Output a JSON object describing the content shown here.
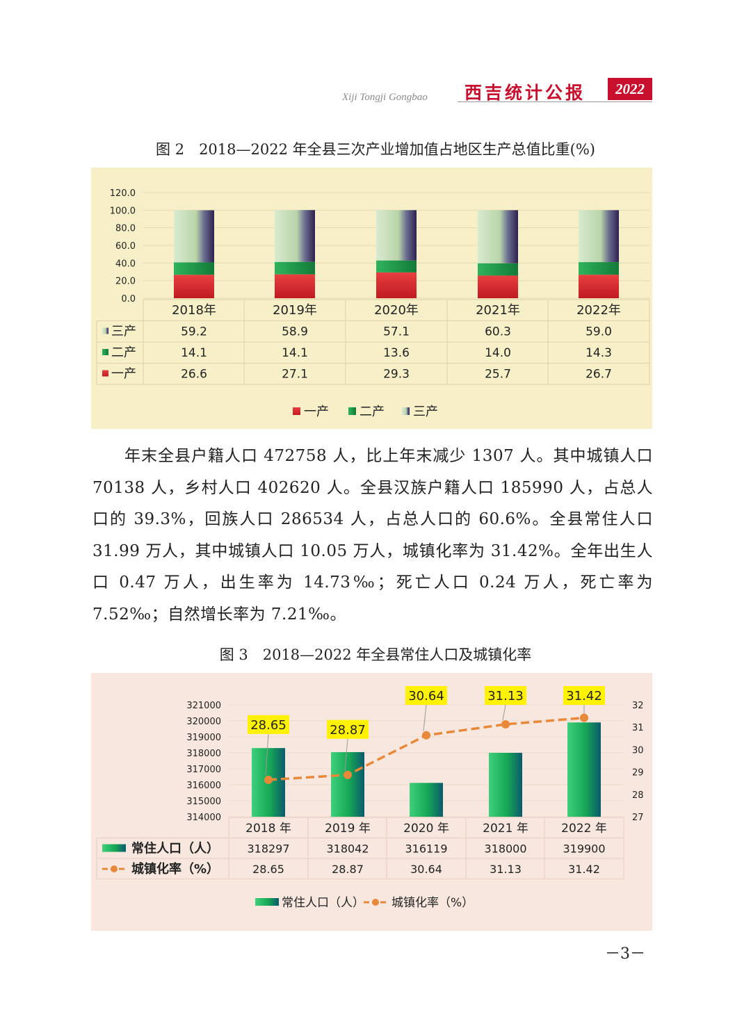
{
  "header": {
    "pinyin": "Xiji Tongji Gongbao",
    "title": "西吉统计公报",
    "year": "2022"
  },
  "figure2": {
    "caption": "图 2　2018—2022 年全县三次产业增加值占地区生产总值比重(%)",
    "chart_data": {
      "type": "bar",
      "stacked": true,
      "categories": [
        "2018年",
        "2019年",
        "2020年",
        "2021年",
        "2022年"
      ],
      "series": [
        {
          "name": "一产",
          "values": [
            26.6,
            27.1,
            29.3,
            25.7,
            26.7
          ],
          "color": "#d9302e"
        },
        {
          "name": "二产",
          "values": [
            14.1,
            14.1,
            13.6,
            14.0,
            14.3
          ],
          "color": "#1f9a4a"
        },
        {
          "name": "三产",
          "values": [
            59.2,
            58.9,
            57.1,
            60.3,
            59.0
          ],
          "color": "#c4dcb8"
        }
      ],
      "y_ticks": [
        "120.0",
        "100.0",
        "80.0",
        "60.0",
        "40.0",
        "20.0",
        "0.0"
      ],
      "ylim": [
        0,
        120
      ],
      "table_values": [
        [
          "59.2",
          "58.9",
          "57.1",
          "60.3",
          "59.0"
        ],
        [
          "14.1",
          "14.1",
          "13.6",
          "14.0",
          "14.3"
        ],
        [
          "26.6",
          "27.1",
          "29.3",
          "25.7",
          "26.7"
        ]
      ],
      "table_row_labels": [
        "三产",
        "二产",
        "一产"
      ],
      "legend": [
        "一产",
        "二产",
        "三产"
      ],
      "legend_position": "bottom",
      "grid": true
    }
  },
  "paragraph": "年末全县户籍人口 472758 人，比上年末减少 1307 人。其中城镇人口 70138 人，乡村人口 402620 人。全县汉族户籍人口 185990 人，占总人口的 39.3%，回族人口 286534 人，占总人口的 60.6%。全县常住人口 31.99 万人，其中城镇人口 10.05 万人，城镇化率为 31.42%。全年出生人口 0.47 万人，出生率为 14.73‰；死亡人口 0.24 万人，死亡率为 7.52‰；自然增长率为 7.21‰。",
  "figure3": {
    "caption": "图 3　2018—2022 年全县常住人口及城镇化率",
    "chart_data": {
      "type": "bar",
      "categories": [
        "2018 年",
        "2019 年",
        "2020 年",
        "2021 年",
        "2022 年"
      ],
      "series": [
        {
          "name": "常住人口（人）",
          "type": "bar",
          "values": [
            318297,
            318042,
            316119,
            318000,
            319900
          ],
          "color": "#1fb35a"
        },
        {
          "name": "城镇化率（%）",
          "type": "line",
          "axis": "right",
          "values": [
            28.65,
            28.87,
            30.64,
            31.13,
            31.42
          ],
          "color": "#e8893a"
        }
      ],
      "y_left_ticks": [
        "321000",
        "320000",
        "319000",
        "318000",
        "317000",
        "316000",
        "315000",
        "314000"
      ],
      "y_left_lim": [
        314000,
        321000
      ],
      "y_right_ticks": [
        "32",
        "31",
        "30",
        "29",
        "28",
        "27"
      ],
      "y_right_lim": [
        27,
        32
      ],
      "data_labels": [
        "28.65",
        "28.87",
        "30.64",
        "31.13",
        "31.42"
      ],
      "table_values": [
        [
          "318297",
          "318042",
          "316119",
          "318000",
          "319900"
        ],
        [
          "28.65",
          "28.87",
          "30.64",
          "31.13",
          "31.42"
        ]
      ],
      "table_row_labels": [
        "常住人口（人）",
        "城镇化率（%）"
      ],
      "legend": [
        "常住人口（人）",
        "城镇化率（%）"
      ],
      "legend_position": "bottom",
      "grid": true
    }
  },
  "page_number": "－3－"
}
